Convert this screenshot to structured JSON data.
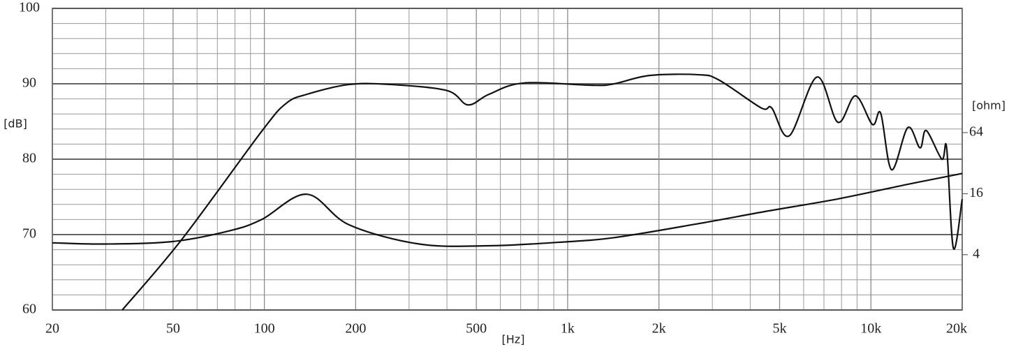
{
  "chart_data": {
    "type": "line",
    "x_label": "[Hz]",
    "y_label": "[dB]",
    "y2_label": "[ohm]",
    "xscale": "log",
    "y2scale": "log",
    "xlim": [
      20,
      20000
    ],
    "ylim": [
      60,
      100
    ],
    "y2lim": [
      1.14,
      1075
    ],
    "xticks": [
      20,
      50,
      100,
      200,
      500,
      {
        "value": 1000,
        "label": "1k"
      },
      {
        "value": 2000,
        "label": "2k"
      },
      {
        "value": 5000,
        "label": "5k"
      },
      {
        "value": 10000,
        "label": "10k"
      },
      {
        "value": 20000,
        "label": "20k"
      }
    ],
    "xminorticks": [
      30,
      40,
      60,
      70,
      80,
      90,
      300,
      400,
      600,
      700,
      800,
      900,
      3000,
      4000,
      6000,
      7000,
      8000,
      9000
    ],
    "yticks": [
      60,
      70,
      80,
      90,
      100
    ],
    "yminorticks": [
      62,
      64,
      66,
      68,
      72,
      74,
      76,
      78,
      82,
      84,
      86,
      88,
      92,
      94,
      96,
      98
    ],
    "y2ticks": [
      4,
      16,
      64
    ],
    "grid": true,
    "series": [
      {
        "color": "#111111",
        "x": [
          34,
          53.3,
          98,
          118,
          138,
          190,
          262,
          400,
          469,
          550,
          716,
          1218,
          1425,
          1861,
          2698,
          3155,
          4347,
          4707,
          5380,
          6640,
          7780,
          8890,
          10120,
          10770,
          11700,
          13240,
          14520,
          15220,
          17130,
          17770,
          18700,
          20000
        ],
        "values": [
          60,
          69.3,
          83.7,
          87.4,
          88.6,
          89.9,
          89.9,
          89.1,
          87.2,
          88.6,
          90.1,
          89.8,
          90,
          91.1,
          91.2,
          90.5,
          86.8,
          86.8,
          83.1,
          90.9,
          84.9,
          88.4,
          84.6,
          86.1,
          78.6,
          84.2,
          81.5,
          83.8,
          80,
          81.5,
          68.2,
          74.7
        ]
      },
      {
        "color": "#111111",
        "axis": "y2",
        "x": [
          20,
          29.8,
          50,
          77,
          98,
          138,
          190,
          324,
          550,
          931,
          1425,
          2698,
          4500,
          7780,
          13240,
          20000
        ],
        "values": [
          5.24,
          5.1,
          5.4,
          6.9,
          8.9,
          15.8,
          7.9,
          5.1,
          4.9,
          5.3,
          5.9,
          8.1,
          10.7,
          14.2,
          19.8,
          25.3
        ]
      }
    ]
  }
}
